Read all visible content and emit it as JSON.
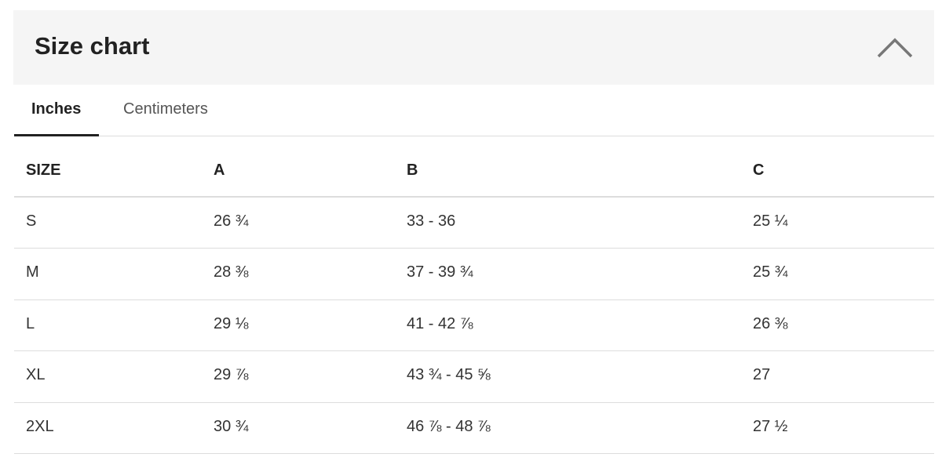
{
  "header": {
    "title": "Size chart"
  },
  "tabs": [
    "Inches",
    "Centimeters"
  ],
  "table": {
    "columns": [
      "SIZE",
      "A",
      "B",
      "C"
    ],
    "rows": [
      [
        "S",
        "26 ¾",
        "33 - 36",
        "25 ¼"
      ],
      [
        "M",
        "28 ⅜",
        "37 - 39 ¾",
        "25 ¾"
      ],
      [
        "L",
        "29 ⅛",
        "41 - 42 ⅞",
        "26 ⅜"
      ],
      [
        "XL",
        "29 ⅞",
        "43 ¾ - 45 ⅝",
        "27"
      ],
      [
        "2XL",
        "30 ¾",
        "46 ⅞ - 48 ⅞",
        "27 ½"
      ]
    ]
  }
}
